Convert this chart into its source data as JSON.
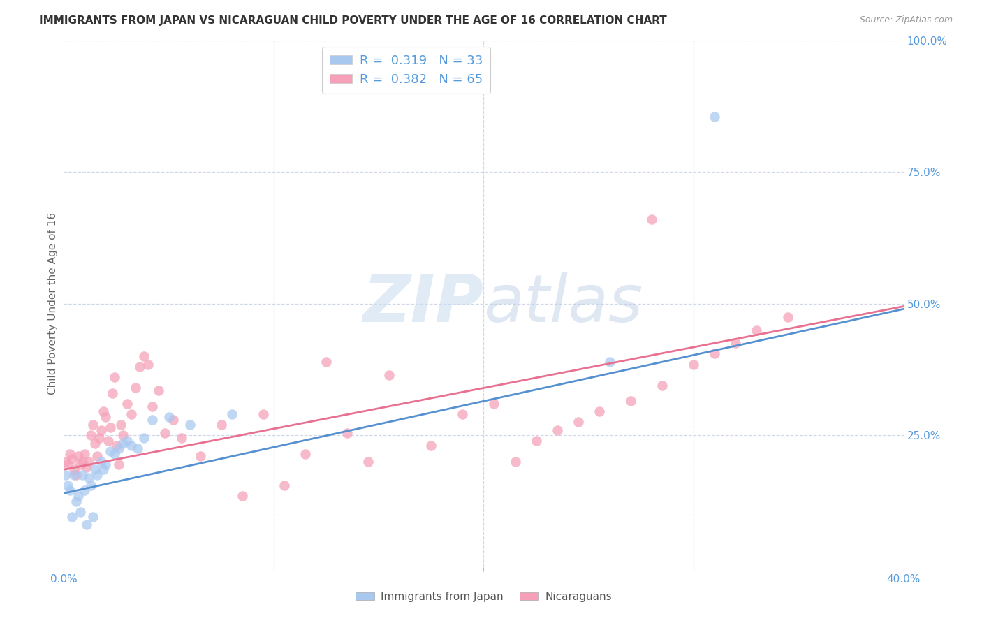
{
  "title": "IMMIGRANTS FROM JAPAN VS NICARAGUAN CHILD POVERTY UNDER THE AGE OF 16 CORRELATION CHART",
  "source": "Source: ZipAtlas.com",
  "ylabel": "Child Poverty Under the Age of 16",
  "xlim": [
    0.0,
    0.4
  ],
  "ylim": [
    0.0,
    1.0
  ],
  "legend1_R": "0.319",
  "legend1_N": "33",
  "legend2_R": "0.382",
  "legend2_N": "65",
  "color_japan": "#a8c8f0",
  "color_nicaragua": "#f5a0b8",
  "color_japan_line": "#5590d0",
  "color_nicaragua_line": "#e87090",
  "watermark_zip": "ZIP",
  "watermark_atlas": "atlas",
  "background_color": "#ffffff",
  "japan_x": [
    0.001,
    0.002,
    0.003,
    0.004,
    0.005,
    0.006,
    0.007,
    0.008,
    0.009,
    0.01,
    0.011,
    0.012,
    0.013,
    0.014,
    0.015,
    0.016,
    0.018,
    0.019,
    0.02,
    0.022,
    0.024,
    0.026,
    0.028,
    0.03,
    0.032,
    0.035,
    0.038,
    0.042,
    0.05,
    0.06,
    0.08,
    0.26,
    0.31
  ],
  "japan_y": [
    0.175,
    0.155,
    0.145,
    0.095,
    0.175,
    0.125,
    0.135,
    0.105,
    0.175,
    0.145,
    0.08,
    0.17,
    0.155,
    0.095,
    0.185,
    0.175,
    0.2,
    0.185,
    0.195,
    0.22,
    0.215,
    0.225,
    0.235,
    0.24,
    0.23,
    0.225,
    0.245,
    0.28,
    0.285,
    0.27,
    0.29,
    0.39,
    0.855
  ],
  "nicaragua_x": [
    0.001,
    0.002,
    0.003,
    0.004,
    0.005,
    0.006,
    0.007,
    0.008,
    0.009,
    0.01,
    0.011,
    0.012,
    0.013,
    0.014,
    0.015,
    0.016,
    0.017,
    0.018,
    0.019,
    0.02,
    0.021,
    0.022,
    0.023,
    0.024,
    0.025,
    0.026,
    0.027,
    0.028,
    0.03,
    0.032,
    0.034,
    0.036,
    0.038,
    0.04,
    0.042,
    0.045,
    0.048,
    0.052,
    0.056,
    0.065,
    0.075,
    0.085,
    0.095,
    0.105,
    0.115,
    0.125,
    0.135,
    0.145,
    0.155,
    0.175,
    0.19,
    0.205,
    0.215,
    0.225,
    0.235,
    0.245,
    0.255,
    0.27,
    0.285,
    0.3,
    0.31,
    0.32,
    0.33,
    0.345,
    0.28
  ],
  "nicaragua_y": [
    0.2,
    0.195,
    0.215,
    0.205,
    0.185,
    0.175,
    0.21,
    0.195,
    0.2,
    0.215,
    0.19,
    0.2,
    0.25,
    0.27,
    0.235,
    0.21,
    0.245,
    0.26,
    0.295,
    0.285,
    0.24,
    0.265,
    0.33,
    0.36,
    0.23,
    0.195,
    0.27,
    0.25,
    0.31,
    0.29,
    0.34,
    0.38,
    0.4,
    0.385,
    0.305,
    0.335,
    0.255,
    0.28,
    0.245,
    0.21,
    0.27,
    0.135,
    0.29,
    0.155,
    0.215,
    0.39,
    0.255,
    0.2,
    0.365,
    0.23,
    0.29,
    0.31,
    0.2,
    0.24,
    0.26,
    0.275,
    0.295,
    0.315,
    0.345,
    0.385,
    0.405,
    0.425,
    0.45,
    0.475,
    0.66
  ]
}
